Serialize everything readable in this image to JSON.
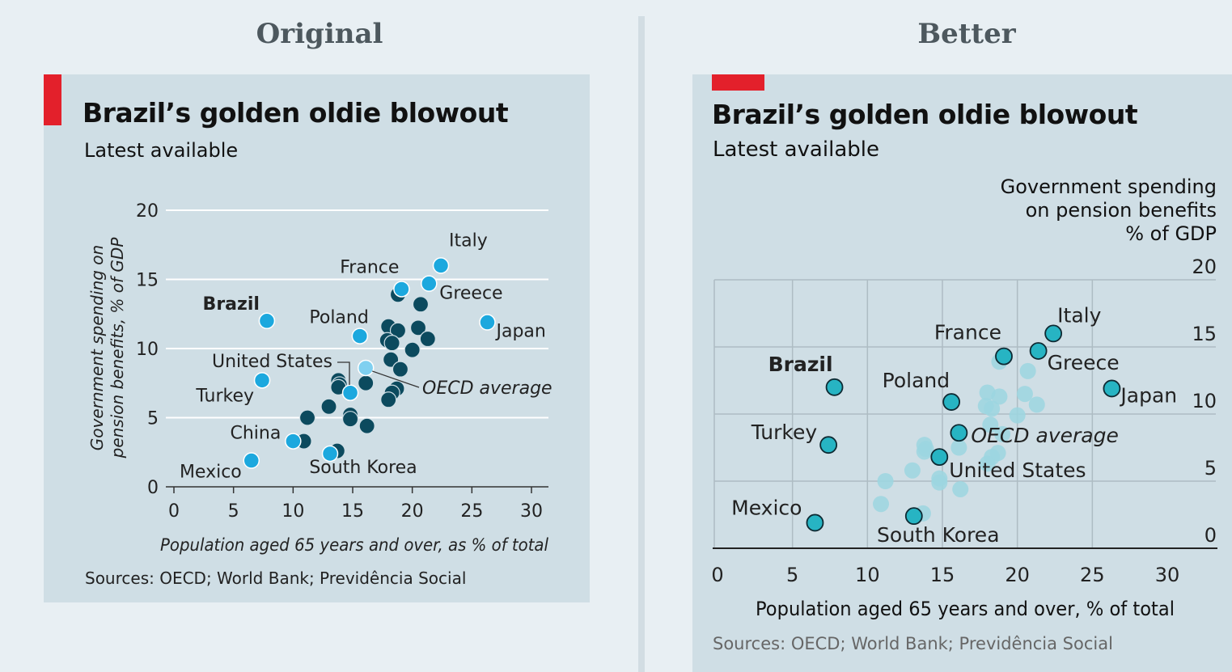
{
  "headings": {
    "left": "Original",
    "right": "Better"
  },
  "title": "Brazil’s golden oldie blowout",
  "subtitle": "Latest available",
  "sources": "Sources: OECD; World Bank; Previdência Social",
  "colors": {
    "accent": "#e3202b",
    "panel": "#cfdee5",
    "dark_point": "#0c4a5e",
    "blue_point": "#1ca8de",
    "oecd_point_original": "#7fd0f0",
    "teal_point": "#27b4c3",
    "faded_point": "#9cd6e0"
  },
  "chart_data": [
    {
      "panel": "Original",
      "type": "scatter",
      "title": "Brazil’s golden oldie blowout",
      "subtitle": "Latest available",
      "xlabel": "Population aged 65 years and over, as % of total",
      "ylabel": "Government spending on pension benefits, % of GDP",
      "xlim": [
        0,
        30
      ],
      "ylim": [
        0,
        20
      ],
      "x_ticks": [
        "0",
        "5",
        "10",
        "15",
        "20",
        "25",
        "30"
      ],
      "y_ticks": [
        "0",
        "5",
        "10",
        "15",
        "20"
      ],
      "grid": "horizontal",
      "labeled_points": [
        {
          "name": "Italy",
          "x": 22.4,
          "y": 16.0
        },
        {
          "name": "France",
          "x": 19.1,
          "y": 14.3
        },
        {
          "name": "Greece",
          "x": 21.4,
          "y": 14.7
        },
        {
          "name": "Japan",
          "x": 26.3,
          "y": 11.9
        },
        {
          "name": "Brazil",
          "x": 7.8,
          "y": 12.0
        },
        {
          "name": "Poland",
          "x": 15.6,
          "y": 10.9
        },
        {
          "name": "United States",
          "x": 14.8,
          "y": 6.8
        },
        {
          "name": "OECD average",
          "x": 16.1,
          "y": 8.6
        },
        {
          "name": "Turkey",
          "x": 7.4,
          "y": 7.7
        },
        {
          "name": "China",
          "x": 10.0,
          "y": 3.3
        },
        {
          "name": "Mexico",
          "x": 6.5,
          "y": 1.9
        },
        {
          "name": "South Korea",
          "x": 13.1,
          "y": 2.4
        }
      ],
      "other_points": [
        {
          "x": 18.8,
          "y": 13.9
        },
        {
          "x": 20.7,
          "y": 13.2
        },
        {
          "x": 18.0,
          "y": 11.6
        },
        {
          "x": 18.8,
          "y": 11.3
        },
        {
          "x": 20.5,
          "y": 11.5
        },
        {
          "x": 21.3,
          "y": 10.7
        },
        {
          "x": 17.9,
          "y": 10.6
        },
        {
          "x": 18.3,
          "y": 10.4
        },
        {
          "x": 20.0,
          "y": 9.9
        },
        {
          "x": 18.2,
          "y": 9.2
        },
        {
          "x": 19.0,
          "y": 8.5
        },
        {
          "x": 13.8,
          "y": 7.7
        },
        {
          "x": 13.9,
          "y": 7.4
        },
        {
          "x": 13.8,
          "y": 7.2
        },
        {
          "x": 16.1,
          "y": 7.5
        },
        {
          "x": 18.7,
          "y": 7.1
        },
        {
          "x": 18.3,
          "y": 6.8
        },
        {
          "x": 18.0,
          "y": 6.3
        },
        {
          "x": 13.0,
          "y": 5.8
        },
        {
          "x": 14.8,
          "y": 5.2
        },
        {
          "x": 11.2,
          "y": 5.0
        },
        {
          "x": 14.8,
          "y": 4.9
        },
        {
          "x": 16.2,
          "y": 4.4
        },
        {
          "x": 10.9,
          "y": 3.3
        },
        {
          "x": 13.7,
          "y": 2.6
        }
      ]
    },
    {
      "panel": "Better",
      "type": "scatter",
      "title": "Brazil’s golden oldie blowout",
      "subtitle": "Latest available",
      "xlabel": "Population aged 65 years and over, % of total",
      "ylabel_lines": [
        "Government spending",
        "on pension benefits",
        "% of GDP"
      ],
      "xlim": [
        0,
        30
      ],
      "ylim": [
        0,
        20
      ],
      "x_ticks": [
        "0",
        "5",
        "10",
        "15",
        "20",
        "25",
        "30"
      ],
      "y_ticks": [
        "0",
        "5",
        "10",
        "15",
        "20"
      ],
      "grid": "both",
      "labeled_points": [
        {
          "name": "Italy",
          "x": 22.4,
          "y": 16.0
        },
        {
          "name": "France",
          "x": 19.1,
          "y": 14.3
        },
        {
          "name": "Greece",
          "x": 21.4,
          "y": 14.7
        },
        {
          "name": "Japan",
          "x": 26.3,
          "y": 11.9
        },
        {
          "name": "Brazil",
          "x": 7.8,
          "y": 12.0
        },
        {
          "name": "Poland",
          "x": 15.6,
          "y": 10.9
        },
        {
          "name": "OECD average",
          "x": 16.1,
          "y": 8.6
        },
        {
          "name": "Turkey",
          "x": 7.4,
          "y": 7.7
        },
        {
          "name": "United States",
          "x": 14.8,
          "y": 6.8
        },
        {
          "name": "Mexico",
          "x": 6.5,
          "y": 1.9
        },
        {
          "name": "South Korea",
          "x": 13.1,
          "y": 2.4
        }
      ],
      "other_points": [
        {
          "x": 18.8,
          "y": 13.9
        },
        {
          "x": 20.7,
          "y": 13.2
        },
        {
          "x": 18.0,
          "y": 11.6
        },
        {
          "x": 18.8,
          "y": 11.3
        },
        {
          "x": 20.5,
          "y": 11.5
        },
        {
          "x": 21.3,
          "y": 10.7
        },
        {
          "x": 17.9,
          "y": 10.6
        },
        {
          "x": 18.3,
          "y": 10.4
        },
        {
          "x": 20.0,
          "y": 9.9
        },
        {
          "x": 18.2,
          "y": 9.2
        },
        {
          "x": 19.0,
          "y": 8.5
        },
        {
          "x": 13.8,
          "y": 7.7
        },
        {
          "x": 13.9,
          "y": 7.4
        },
        {
          "x": 13.8,
          "y": 7.2
        },
        {
          "x": 16.1,
          "y": 7.5
        },
        {
          "x": 18.7,
          "y": 7.1
        },
        {
          "x": 18.3,
          "y": 6.8
        },
        {
          "x": 18.0,
          "y": 6.3
        },
        {
          "x": 13.0,
          "y": 5.8
        },
        {
          "x": 14.8,
          "y": 5.2
        },
        {
          "x": 11.2,
          "y": 5.0
        },
        {
          "x": 14.8,
          "y": 4.9
        },
        {
          "x": 16.2,
          "y": 4.4
        },
        {
          "x": 10.9,
          "y": 3.3
        },
        {
          "x": 13.7,
          "y": 2.6
        }
      ]
    }
  ]
}
